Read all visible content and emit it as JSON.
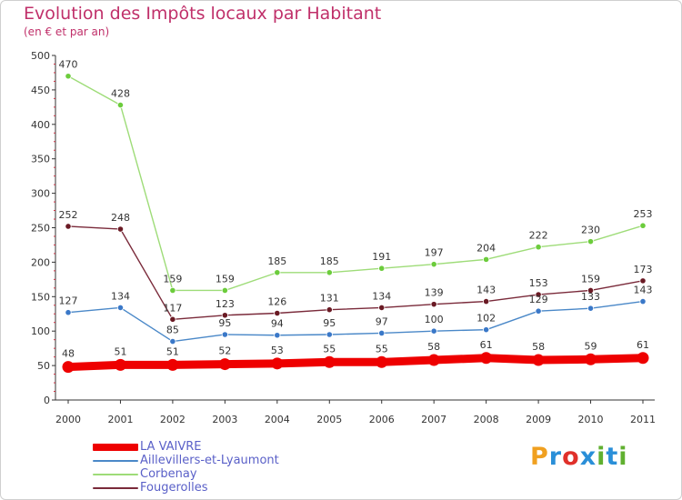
{
  "header": {
    "title": "Evolution des Impôts locaux par Habitant",
    "subtitle": "(en € et par an)"
  },
  "logo": {
    "text": "Proxiti",
    "colors": [
      "#f0a020",
      "#2a8fd8",
      "#e0302a",
      "#2a8fd8",
      "#60b030",
      "#2a8fd8",
      "#60b030"
    ]
  },
  "chart_data": {
    "type": "line",
    "title": "Evolution des Impôts locaux par Habitant",
    "subtitle": "(en € et par an)",
    "xlabel": "",
    "ylabel": "",
    "x": [
      "2000",
      "2001",
      "2002",
      "2003",
      "2004",
      "2005",
      "2006",
      "2007",
      "2008",
      "2009",
      "2010",
      "2011"
    ],
    "ylim": [
      0,
      500
    ],
    "yticks": [
      0,
      50,
      100,
      150,
      200,
      250,
      300,
      350,
      400,
      450,
      500
    ],
    "grid": false,
    "legend_position": "bottom-left",
    "series": [
      {
        "name": "LA VAIVRE",
        "color": "#ee0000",
        "values": [
          48,
          51,
          51,
          52,
          53,
          55,
          55,
          58,
          61,
          58,
          59,
          61
        ],
        "style": "thick"
      },
      {
        "name": "Aillevillers-et-Lyaumont",
        "color": "#4a88c8",
        "values": [
          127,
          134,
          85,
          95,
          94,
          95,
          97,
          100,
          102,
          129,
          133,
          143
        ],
        "style": "thin"
      },
      {
        "name": "Corbenay",
        "color": "#9edc78",
        "values": [
          470,
          428,
          159,
          159,
          185,
          185,
          191,
          197,
          204,
          222,
          230,
          253
        ],
        "style": "thin"
      },
      {
        "name": "Fougerolles",
        "color": "#7a2a3a",
        "values": [
          252,
          248,
          117,
          123,
          126,
          131,
          134,
          139,
          143,
          153,
          159,
          173
        ],
        "style": "thin"
      }
    ],
    "point_colors": {
      "LA VAIVRE": "#ee0000",
      "Aillevillers-et-Lyaumont": "#3a78c8",
      "Corbenay": "#6ccc3c",
      "Fougerolles": "#6a1a24"
    }
  }
}
